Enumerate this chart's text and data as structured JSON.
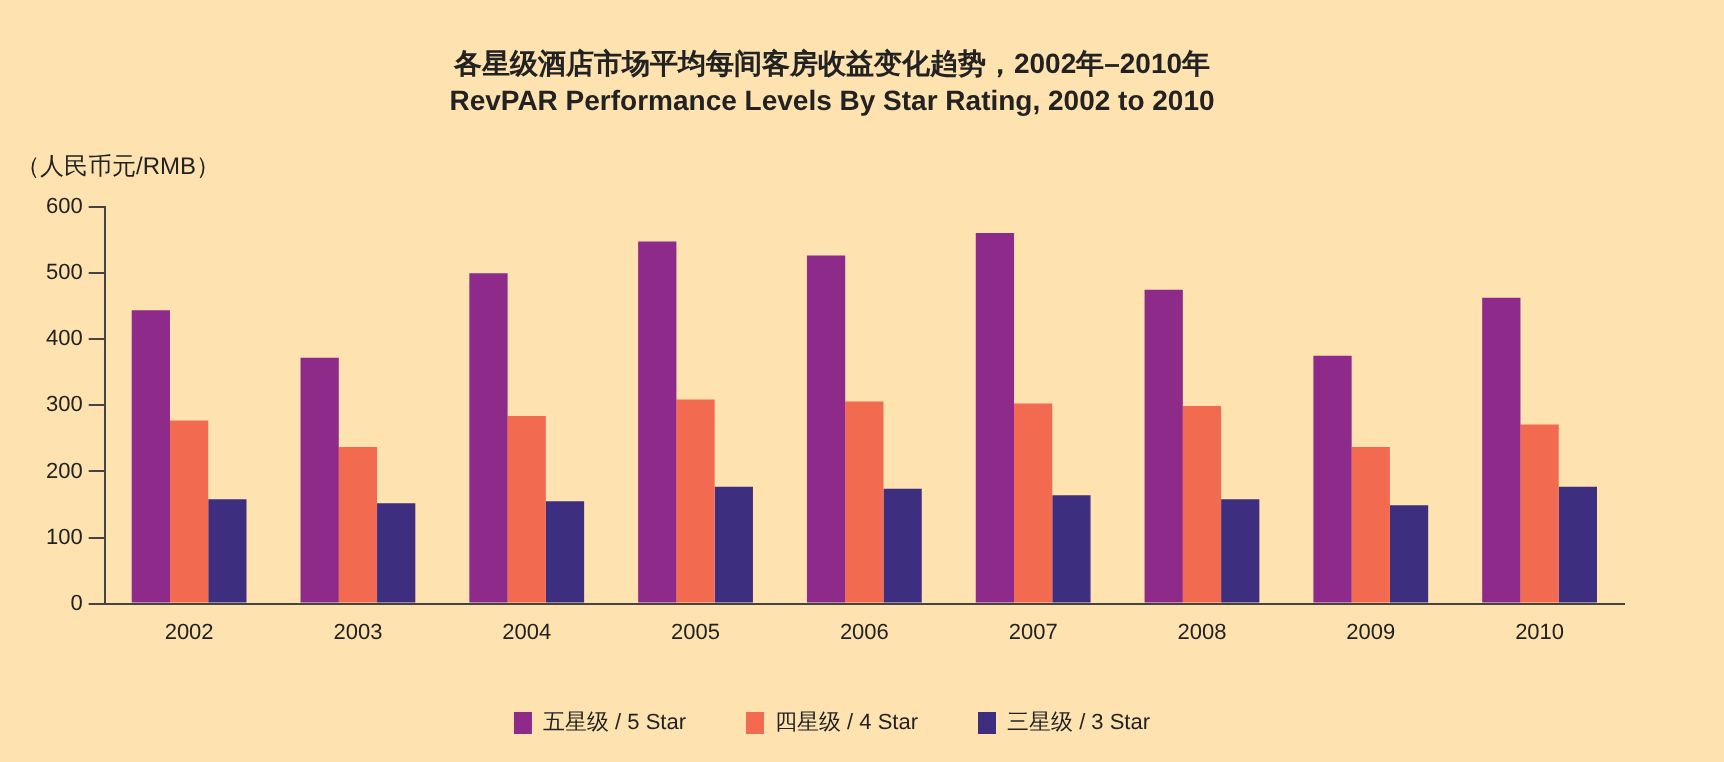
{
  "chart_data": {
    "type": "bar",
    "title": "各星级酒店市场平均每间客房收益变化趋势，2002年–2010年",
    "subtitle": "RevPAR Performance Levels By Star Rating, 2002 to 2010",
    "ylabel": "（人民币元/RMB）",
    "categories": [
      "2002",
      "2003",
      "2004",
      "2005",
      "2006",
      "2007",
      "2008",
      "2009",
      "2010"
    ],
    "series": [
      {
        "name": "五星级 / 5 Star",
        "color": "#8e2a8a",
        "values": [
          444,
          372,
          500,
          548,
          527,
          561,
          475,
          375,
          463
        ]
      },
      {
        "name": "四星级 / 4 Star",
        "color": "#f26a50",
        "values": [
          277,
          237,
          284,
          309,
          306,
          303,
          299,
          237,
          271
        ]
      },
      {
        "name": "三星级 / 3 Star",
        "color": "#3d2e80",
        "values": [
          158,
          152,
          155,
          177,
          174,
          164,
          158,
          149,
          177
        ]
      }
    ],
    "ylim": [
      0,
      600
    ],
    "yticks": [
      0,
      100,
      200,
      300,
      400,
      500,
      600
    ],
    "grid": false,
    "legend": "bottom"
  }
}
